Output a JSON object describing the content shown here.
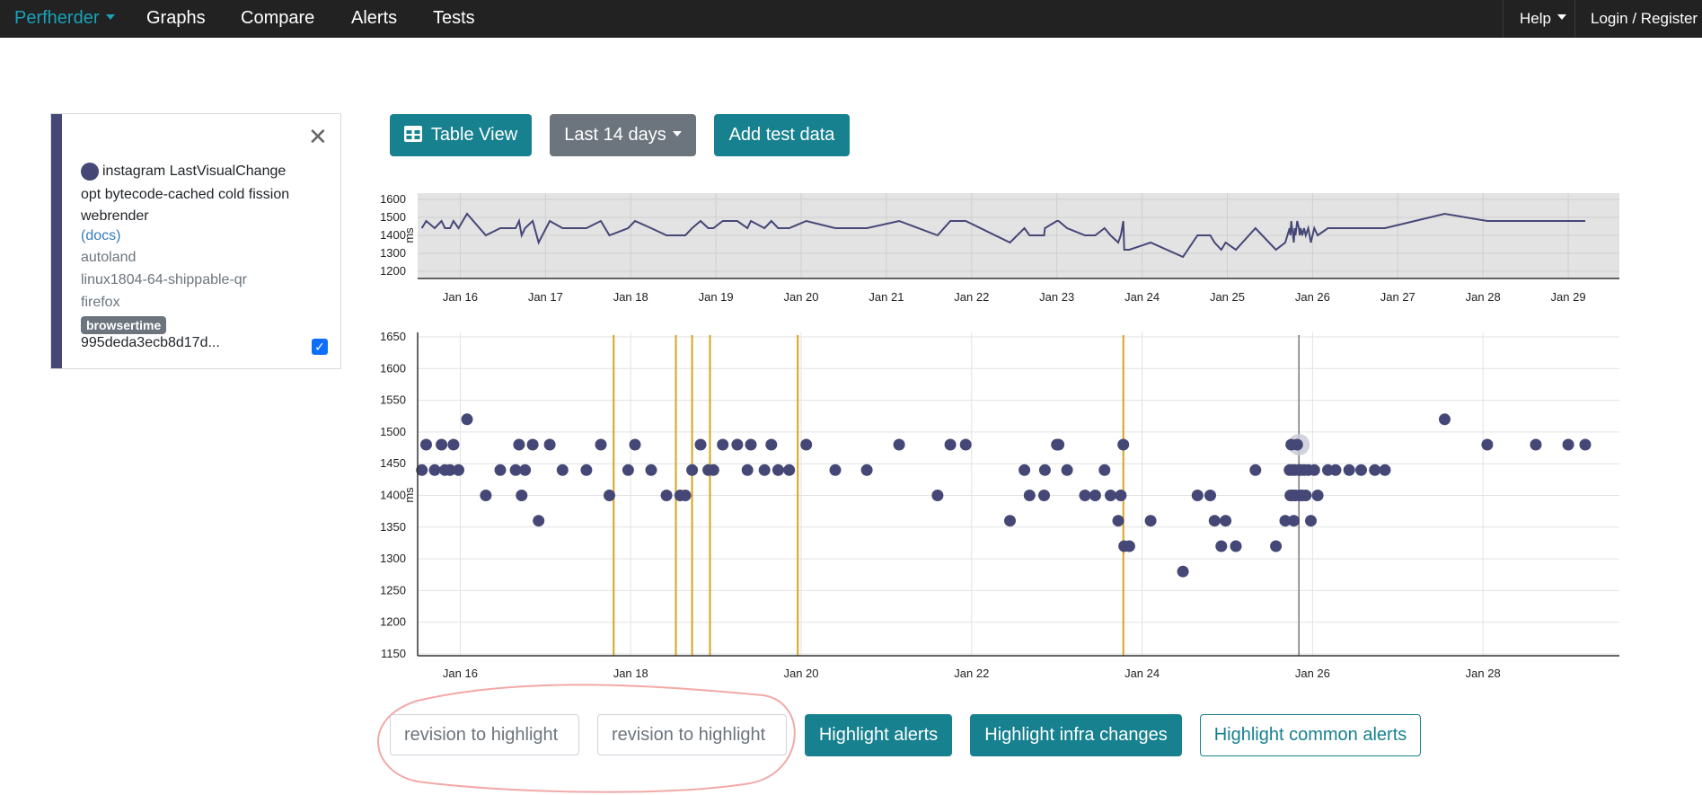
{
  "nav": {
    "brand": "Perfherder",
    "links": [
      "Graphs",
      "Compare",
      "Alerts",
      "Tests"
    ],
    "help": "Help",
    "login": "Login / Register"
  },
  "series": {
    "test_name": "instagram LastVisualChange",
    "options_line1": "opt bytecode-cached cold fission",
    "options_line2": "webrender",
    "docs": "(docs)",
    "repo": "autoland",
    "platform": "linux1804-64-shippable-qr",
    "app": "firefox",
    "framework": "browsertime",
    "revision": "995deda3ecb8d17d...",
    "color": "#454776"
  },
  "toolbar": {
    "table_view": "Table View",
    "timerange": "Last 14 days",
    "add_data": "Add test data"
  },
  "overview_chart": {
    "ylabel": "ms",
    "y_ticks": [
      "1600",
      "1500",
      "1400",
      "1300",
      "1200"
    ],
    "x_ticks": [
      "Jan 16",
      "Jan 17",
      "Jan 18",
      "Jan 19",
      "Jan 20",
      "Jan 21",
      "Jan 22",
      "Jan 23",
      "Jan 24",
      "Jan 25",
      "Jan 26",
      "Jan 27",
      "Jan 28",
      "Jan 29"
    ]
  },
  "chart_data": {
    "type": "scatter",
    "title": "",
    "xlabel": "",
    "ylabel": "ms",
    "ylim": [
      1150,
      1650
    ],
    "xlim": [
      15.5,
      29.6
    ],
    "y_ticks": [
      "1650",
      "1600",
      "1550",
      "1500",
      "1450",
      "1400",
      "1350",
      "1300",
      "1250",
      "1200",
      "1150"
    ],
    "x_ticks": [
      {
        "label": "Jan 16",
        "value": 16
      },
      {
        "label": "Jan 18",
        "value": 18
      },
      {
        "label": "Jan 20",
        "value": 20
      },
      {
        "label": "Jan 22",
        "value": 22
      },
      {
        "label": "Jan 24",
        "value": 24
      },
      {
        "label": "Jan 26",
        "value": 26
      },
      {
        "label": "Jan 28",
        "value": 28
      }
    ],
    "alert_lines": [
      17.8,
      18.53,
      18.72,
      18.93,
      19.96,
      23.78
    ],
    "selected_x": 25.84,
    "series": [
      {
        "name": "instagram LastVisualChange",
        "x": [
          15.55,
          15.6,
          15.7,
          15.78,
          15.82,
          15.88,
          15.92,
          15.98,
          16.08,
          16.3,
          16.47,
          16.65,
          16.69,
          16.72,
          16.76,
          16.85,
          16.92,
          17.05,
          17.2,
          17.48,
          17.65,
          17.75,
          17.97,
          18.05,
          18.24,
          18.42,
          18.58,
          18.64,
          18.72,
          18.82,
          18.91,
          18.97,
          19.08,
          19.25,
          19.37,
          19.41,
          19.57,
          19.65,
          19.73,
          19.86,
          20.06,
          20.4,
          20.77,
          21.15,
          21.6,
          21.75,
          21.93,
          22.45,
          22.62,
          22.68,
          22.85,
          22.86,
          23.0,
          23.02,
          23.12,
          23.33,
          23.45,
          23.56,
          23.63,
          23.72,
          23.75,
          23.78,
          23.79,
          23.85,
          24.1,
          24.48,
          24.65,
          24.8,
          24.85,
          24.93,
          24.98,
          25.1,
          25.33,
          25.57,
          25.68,
          25.73,
          25.74,
          25.75,
          25.76,
          25.77,
          25.78,
          25.79,
          25.8,
          25.82,
          25.84,
          25.85,
          25.86,
          25.88,
          25.9,
          25.92,
          25.95,
          25.98,
          26.02,
          26.06,
          26.18,
          26.27,
          26.43,
          26.57,
          26.73,
          26.85,
          27.55,
          28.05,
          28.62,
          29.0,
          29.2
        ],
        "values": [
          1440,
          1480,
          1440,
          1480,
          1440,
          1440,
          1480,
          1440,
          1520,
          1400,
          1440,
          1440,
          1480,
          1400,
          1440,
          1480,
          1360,
          1480,
          1440,
          1440,
          1480,
          1400,
          1440,
          1480,
          1440,
          1400,
          1400,
          1400,
          1440,
          1480,
          1440,
          1440,
          1480,
          1480,
          1440,
          1480,
          1440,
          1480,
          1440,
          1440,
          1480,
          1440,
          1440,
          1480,
          1400,
          1480,
          1480,
          1360,
          1440,
          1400,
          1400,
          1440,
          1480,
          1480,
          1440,
          1400,
          1400,
          1440,
          1400,
          1360,
          1400,
          1480,
          1320,
          1320,
          1360,
          1280,
          1400,
          1400,
          1360,
          1320,
          1360,
          1320,
          1440,
          1320,
          1360,
          1440,
          1400,
          1480,
          1440,
          1400,
          1360,
          1440,
          1400,
          1480,
          1440,
          1400,
          1440,
          1400,
          1440,
          1400,
          1440,
          1360,
          1440,
          1400,
          1440,
          1440,
          1440,
          1440,
          1440,
          1440,
          1520,
          1480,
          1480,
          1480,
          1480
        ]
      }
    ]
  },
  "highlight": {
    "revision_placeholder_1": "revision to highlight",
    "revision_placeholder_2": "revision to highlight",
    "alerts": "Highlight alerts",
    "infra": "Highlight infra changes",
    "common": "Highlight common alerts"
  }
}
